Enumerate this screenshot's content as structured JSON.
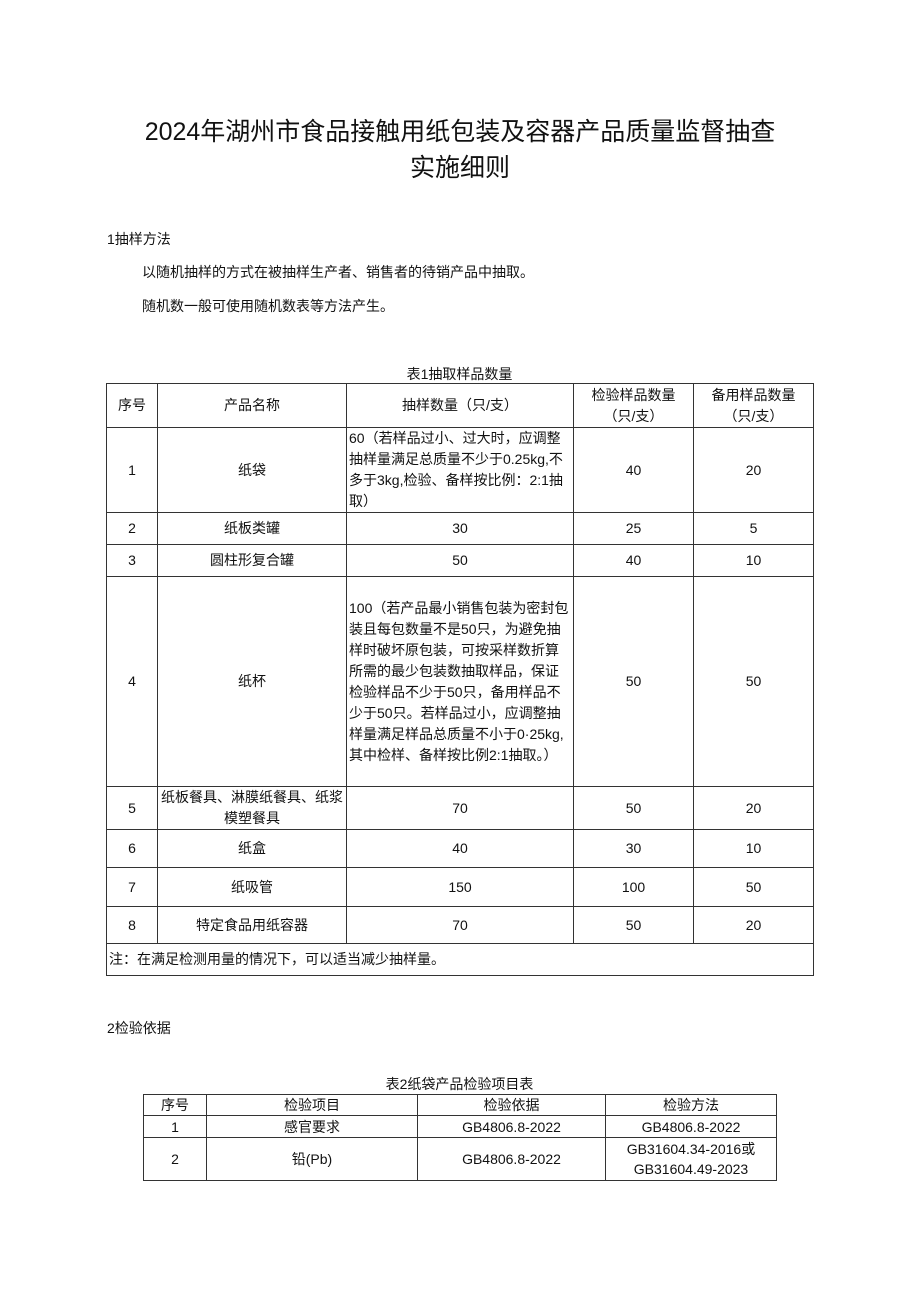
{
  "title": {
    "line1": "2024年湖州市食品接触用纸包装及容器产品质量监督抽查",
    "line2": "实施细则"
  },
  "section1": {
    "heading": "1抽样方法",
    "p1": "以随机抽样的方式在被抽样生产者、销售者的待销产品中抽取。",
    "p2": "随机数一般可使用随机数表等方法产生。"
  },
  "table1": {
    "caption": "表1抽取样品数量",
    "headers": [
      "序号",
      "产品名称",
      "抽样数量（只/支）",
      "检验样品数量（只/支）",
      "备用样品数量（只/支）"
    ],
    "rows": [
      [
        "1",
        "纸袋",
        "60（若样品过小、过大时，应调整抽样量满足总质量不少于0.25kg,不多于3kg,检验、备样按比例：2:1抽取）",
        "40",
        "20"
      ],
      [
        "2",
        "纸板类罐",
        "30",
        "25",
        "5"
      ],
      [
        "3",
        "圆柱形复合罐",
        "50",
        "40",
        "10"
      ],
      [
        "4",
        "纸杯",
        "100（若产品最小销售包装为密封包装且每包数量不是50只，为避免抽样时破坏原包装，可按采样数折算所需的最少包装数抽取样品，保证检验样品不少于50只，备用样品不少于50只。若样品过小，应调整抽样量满足样品总质量不小于0·25kg,其中检样、备样按比例2:1抽取。）",
        "50",
        "50"
      ],
      [
        "5",
        "纸板餐具、淋膜纸餐具、纸浆模塑餐具",
        "70",
        "50",
        "20"
      ],
      [
        "6",
        "纸盒",
        "40",
        "30",
        "10"
      ],
      [
        "7",
        "纸吸管",
        "150",
        "100",
        "50"
      ],
      [
        "8",
        "特定食品用纸容器",
        "70",
        "50",
        "20"
      ]
    ],
    "note": "注：在满足检测用量的情况下，可以适当减少抽样量。"
  },
  "section2": {
    "heading": "2检验依据"
  },
  "table2": {
    "caption": "表2纸袋产品检验项目表",
    "headers": [
      "序号",
      "检验项目",
      "检验依据",
      "检验方法"
    ],
    "rows": [
      [
        "1",
        "感官要求",
        "GB4806.8-2022",
        "GB4806.8-2022"
      ],
      [
        "2",
        "铅(Pb)",
        "GB4806.8-2022",
        "GB31604.34-2016或GB31604.49-2023"
      ]
    ]
  }
}
